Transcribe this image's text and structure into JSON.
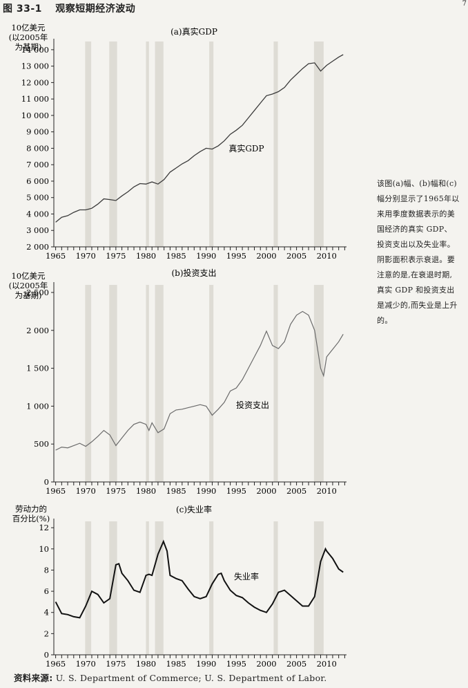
{
  "figure": {
    "number": "图 33-1",
    "title": "观察短期经济波动",
    "page_number": "7"
  },
  "caption": "该图(a)幅、(b)幅和(c)幅分别显示了1965年以来用季度数据表示的美国经济的真实 GDP、投资支出以及失业率。阴影面积表示衰退。要注意的是,在衰退时期,真实 GDP 和投资支出是减少的,而失业是上升的。",
  "source": {
    "label": "资料来源:",
    "text": "U. S.  Department of Commerce; U. S.  Department of Labor."
  },
  "recessions": [
    [
      1969.9,
      1970.9
    ],
    [
      1973.9,
      1975.2
    ],
    [
      1980.0,
      1980.5
    ],
    [
      1981.5,
      1982.9
    ],
    [
      1990.5,
      1991.2
    ],
    [
      2001.2,
      2001.9
    ],
    [
      2007.9,
      2009.5
    ]
  ],
  "chart_data": [
    {
      "type": "line",
      "panel_title": "(a)真实GDP",
      "ylabel": [
        "10亿美元",
        "(以2005年",
        "为基期)"
      ],
      "series": [
        {
          "name": "真实GDP",
          "x": [
            1965,
            1966,
            1967,
            1968,
            1969,
            1970,
            1971,
            1972,
            1973,
            1974,
            1975,
            1976,
            1977,
            1978,
            1979,
            1980,
            1981,
            1982,
            1983,
            1984,
            1985,
            1986,
            1987,
            1988,
            1989,
            1990,
            1991,
            1992,
            1993,
            1994,
            1995,
            1996,
            1997,
            1998,
            1999,
            2000,
            2001,
            2002,
            2003,
            2004,
            2005,
            2006,
            2007,
            2008,
            2009,
            2010,
            2011,
            2012,
            2012.75
          ],
          "values": [
            3500,
            3800,
            3900,
            4100,
            4250,
            4250,
            4350,
            4600,
            4920,
            4880,
            4820,
            5100,
            5350,
            5650,
            5850,
            5820,
            5950,
            5820,
            6100,
            6550,
            6800,
            7050,
            7250,
            7550,
            7800,
            8000,
            7950,
            8150,
            8450,
            8850,
            9100,
            9400,
            9850,
            10300,
            10750,
            11200,
            11300,
            11450,
            11700,
            12150,
            12500,
            12850,
            13150,
            13200,
            12700,
            13050,
            13300,
            13550,
            13700
          ]
        }
      ],
      "xticks": [
        1965,
        1970,
        1975,
        1980,
        1985,
        1990,
        1995,
        2000,
        2005,
        2010
      ],
      "yticks": [
        2000,
        3000,
        4000,
        5000,
        6000,
        7000,
        8000,
        9000,
        10000,
        11000,
        12000,
        13000,
        14000
      ],
      "ytick_labels": [
        "2 000",
        "3 000",
        "4 000",
        "5 000",
        "6 000",
        "7 000",
        "8 000",
        "9 000",
        "10 000",
        "11 000",
        "12 000",
        "13 000",
        "14 000"
      ],
      "xlim": [
        1964.7,
        2013.3
      ],
      "ylim": [
        2000,
        14500
      ]
    },
    {
      "type": "line",
      "panel_title": "(b)投资支出",
      "ylabel": [
        "10亿美元",
        "(以2005年",
        "为基期)"
      ],
      "series": [
        {
          "name": "投资支出",
          "x": [
            1965,
            1966,
            1967,
            1968,
            1969,
            1970,
            1971,
            1972,
            1973,
            1974,
            1975,
            1976,
            1977,
            1978,
            1979,
            1980,
            1980.5,
            1981,
            1982,
            1983,
            1984,
            1985,
            1986,
            1987,
            1988,
            1989,
            1990,
            1991,
            1992,
            1993,
            1994,
            1995,
            1996,
            1997,
            1998,
            1999,
            2000,
            2001,
            2002,
            2003,
            2004,
            2005,
            2006,
            2007,
            2008,
            2009,
            2009.5,
            2010,
            2011,
            2012,
            2012.75
          ],
          "values": [
            420,
            460,
            450,
            480,
            510,
            470,
            530,
            600,
            680,
            620,
            480,
            580,
            680,
            760,
            790,
            760,
            680,
            780,
            650,
            700,
            900,
            950,
            960,
            980,
            1000,
            1020,
            1000,
            880,
            960,
            1050,
            1200,
            1240,
            1350,
            1500,
            1650,
            1800,
            1990,
            1800,
            1760,
            1850,
            2080,
            2200,
            2250,
            2200,
            2000,
            1500,
            1400,
            1650,
            1750,
            1850,
            1950
          ]
        }
      ],
      "xticks": [
        1965,
        1970,
        1975,
        1980,
        1985,
        1990,
        1995,
        2000,
        2005,
        2010
      ],
      "yticks": [
        0,
        500,
        1000,
        1500,
        2000,
        2500
      ],
      "ytick_labels": [
        "0",
        "500",
        "1 000",
        "1 500",
        "2 000",
        "2 500"
      ],
      "xlim": [
        1964.7,
        2013.3
      ],
      "ylim": [
        0,
        2600
      ]
    },
    {
      "type": "line",
      "panel_title": "(c)失业率",
      "ylabel": [
        "劳动力的",
        "百分比(%)"
      ],
      "series": [
        {
          "name": "失业率",
          "x": [
            1965,
            1966,
            1967,
            1968,
            1969,
            1970,
            1971,
            1972,
            1973,
            1974,
            1975,
            1975.5,
            1976,
            1977,
            1978,
            1979,
            1980,
            1980.5,
            1981,
            1982,
            1982.9,
            1983.5,
            1984,
            1985,
            1986,
            1987,
            1988,
            1989,
            1990,
            1991,
            1992,
            1992.5,
            1993,
            1994,
            1995,
            1996,
            1997,
            1998,
            1999,
            2000,
            2001,
            2002,
            2003,
            2004,
            2005,
            2006,
            2007,
            2008,
            2009,
            2009.8,
            2010,
            2011,
            2012,
            2012.75
          ],
          "values": [
            5.0,
            3.9,
            3.8,
            3.6,
            3.5,
            4.6,
            6.0,
            5.7,
            4.9,
            5.3,
            8.5,
            8.6,
            7.7,
            7.0,
            6.1,
            5.9,
            7.5,
            7.6,
            7.5,
            9.5,
            10.7,
            9.8,
            7.5,
            7.2,
            7.0,
            6.2,
            5.5,
            5.3,
            5.5,
            6.7,
            7.6,
            7.7,
            7.0,
            6.1,
            5.6,
            5.4,
            4.9,
            4.5,
            4.2,
            4.0,
            4.8,
            5.9,
            6.1,
            5.6,
            5.1,
            4.6,
            4.6,
            5.5,
            8.8,
            10.0,
            9.8,
            9.1,
            8.1,
            7.8
          ]
        }
      ],
      "xticks": [
        1965,
        1970,
        1975,
        1980,
        1985,
        1990,
        1995,
        2000,
        2005,
        2010
      ],
      "yticks": [
        0,
        2,
        4,
        6,
        8,
        10,
        12
      ],
      "ytick_labels": [
        "0",
        "2",
        "4",
        "6",
        "8",
        "10",
        "12"
      ],
      "xlim": [
        1964.7,
        2013.3
      ],
      "ylim": [
        0,
        12.6
      ]
    }
  ]
}
